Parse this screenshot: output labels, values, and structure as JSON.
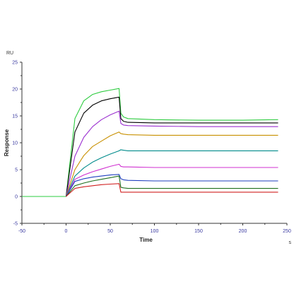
{
  "chart_data": {
    "type": "line",
    "title": "",
    "xlabel": "Time",
    "ylabel": "Response",
    "yunit": "RU",
    "xunit": "s",
    "xlim": [
      -50,
      250
    ],
    "ylim": [
      -5,
      25
    ],
    "xticks": [
      -50,
      0,
      50,
      100,
      150,
      200,
      250
    ],
    "yticks": [
      -5,
      0,
      5,
      10,
      15,
      20,
      25
    ],
    "grid": false,
    "legend": "none",
    "association_end": 60,
    "series": [
      {
        "color": "#2ecc40",
        "x": [
          -50,
          0,
          10,
          20,
          30,
          40,
          50,
          60,
          62,
          65,
          70,
          100,
          150,
          200,
          240
        ],
        "y": [
          0,
          0,
          14.5,
          17.8,
          19.0,
          19.5,
          19.8,
          20.1,
          15.5,
          14.8,
          14.5,
          14.3,
          14.2,
          14.2,
          14.3
        ]
      },
      {
        "color": "#000000",
        "x": [
          0,
          10,
          20,
          30,
          40,
          50,
          60,
          62,
          65,
          70,
          100,
          150,
          200,
          240
        ],
        "y": [
          0,
          12.0,
          15.5,
          17.0,
          17.8,
          18.2,
          18.5,
          14.5,
          14.0,
          13.8,
          13.7,
          13.7,
          13.7,
          13.7
        ]
      },
      {
        "color": "#9b30d0",
        "x": [
          0,
          10,
          20,
          30,
          40,
          50,
          60,
          62,
          65,
          70,
          100,
          150,
          200,
          240
        ],
        "y": [
          0,
          7.5,
          11.0,
          13.0,
          14.3,
          15.2,
          15.9,
          13.6,
          13.3,
          13.2,
          13.1,
          13.0,
          13.0,
          13.0
        ]
      },
      {
        "color": "#c89000",
        "x": [
          0,
          10,
          20,
          30,
          40,
          50,
          60,
          62,
          65,
          70,
          100,
          150,
          200,
          240
        ],
        "y": [
          0,
          5.0,
          7.6,
          9.3,
          10.3,
          11.3,
          12.0,
          11.7,
          11.6,
          11.5,
          11.4,
          11.4,
          11.4,
          11.4
        ]
      },
      {
        "color": "#008b8b",
        "x": [
          0,
          10,
          20,
          30,
          40,
          50,
          60,
          62,
          65,
          70,
          100,
          150,
          200,
          240
        ],
        "y": [
          0,
          3.8,
          5.3,
          6.4,
          7.2,
          7.9,
          8.5,
          8.7,
          8.6,
          8.5,
          8.5,
          8.5,
          8.5,
          8.5
        ]
      },
      {
        "color": "#d030d0",
        "x": [
          0,
          10,
          20,
          30,
          40,
          50,
          60,
          62,
          65,
          70,
          100,
          150,
          200,
          240
        ],
        "y": [
          0,
          3.2,
          4.0,
          4.6,
          5.1,
          5.6,
          6.0,
          5.6,
          5.5,
          5.5,
          5.4,
          5.4,
          5.4,
          5.4
        ]
      },
      {
        "color": "#1f3fbf",
        "x": [
          0,
          10,
          20,
          30,
          40,
          50,
          60,
          62,
          65,
          70,
          100,
          150,
          200,
          240
        ],
        "y": [
          0,
          2.8,
          3.3,
          3.6,
          3.8,
          4.0,
          4.1,
          3.3,
          3.1,
          3.0,
          2.9,
          2.9,
          2.9,
          2.9
        ]
      },
      {
        "color": "#207020",
        "x": [
          0,
          10,
          20,
          30,
          40,
          50,
          60,
          62,
          65,
          70,
          100,
          150,
          200,
          240
        ],
        "y": [
          0,
          2.0,
          2.5,
          2.9,
          3.2,
          3.5,
          3.8,
          1.7,
          1.6,
          1.5,
          1.5,
          1.5,
          1.5,
          1.5
        ]
      },
      {
        "color": "#d02020",
        "x": [
          0,
          10,
          20,
          30,
          40,
          50,
          60,
          62,
          65,
          70,
          100,
          150,
          200,
          240
        ],
        "y": [
          0,
          1.5,
          1.8,
          2.0,
          2.2,
          2.3,
          2.4,
          0.8,
          0.8,
          0.8,
          0.8,
          0.8,
          0.8,
          0.8
        ]
      }
    ]
  }
}
